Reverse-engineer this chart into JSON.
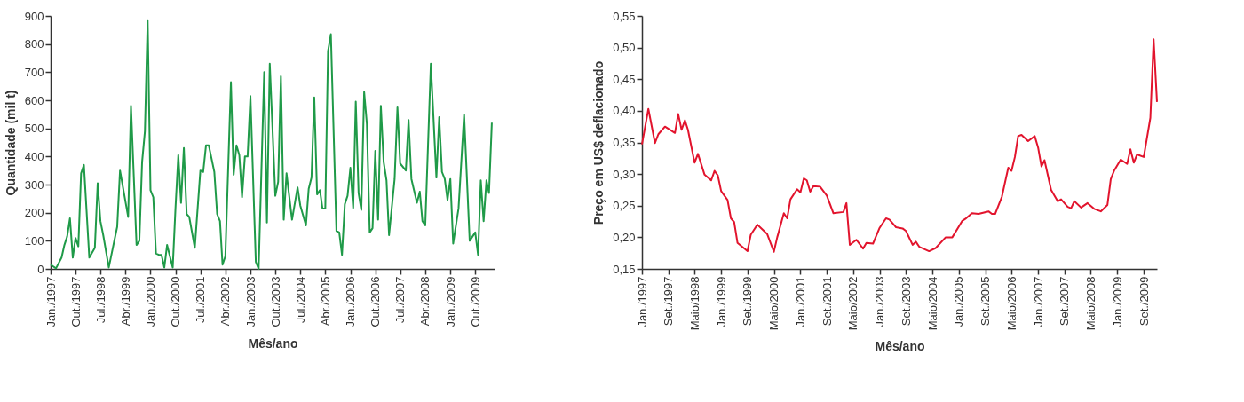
{
  "chart_data": [
    {
      "type": "line",
      "xlabel": "Mês/ano",
      "ylabel": "Quantidade (mil t)",
      "x": [
        "1997-01",
        "1997-03",
        "1997-05",
        "1997-06",
        "1997-07",
        "1997-08",
        "1997-09",
        "1997-10",
        "1997-11",
        "1997-12",
        "1998-01",
        "1998-03",
        "1998-05",
        "1998-06",
        "1998-07",
        "1998-08",
        "1998-10",
        "1999-01",
        "1999-02",
        "1999-05",
        "1999-06",
        "1999-08",
        "1999-09",
        "1999-10",
        "1999-11",
        "1999-12",
        "2000-01",
        "2000-02",
        "2000-03",
        "2000-04",
        "2000-05",
        "2000-06",
        "2000-07",
        "2000-09",
        "2000-10",
        "2000-11",
        "2000-12",
        "2001-01",
        "2001-02",
        "2001-03",
        "2001-05",
        "2001-07",
        "2001-08",
        "2001-09",
        "2001-10",
        "2001-12",
        "2002-01",
        "2002-02",
        "2002-03",
        "2002-04",
        "2002-06",
        "2002-07",
        "2002-08",
        "2002-09",
        "2002-10",
        "2002-11",
        "2002-12",
        "2003-01",
        "2003-03",
        "2003-04",
        "2003-06",
        "2003-07",
        "2003-08",
        "2003-10",
        "2003-11",
        "2003-12",
        "2004-01",
        "2004-02",
        "2004-04",
        "2004-06",
        "2004-07",
        "2004-09",
        "2004-10",
        "2004-11",
        "2004-12",
        "2005-01",
        "2005-02",
        "2005-03",
        "2005-04",
        "2005-05",
        "2005-06",
        "2005-08",
        "2005-09",
        "2005-10",
        "2005-11",
        "2005-12",
        "2006-01",
        "2006-02",
        "2006-03",
        "2006-04",
        "2006-05",
        "2006-06",
        "2006-07",
        "2006-08",
        "2006-09",
        "2006-10",
        "2006-11",
        "2006-12",
        "2007-01",
        "2007-02",
        "2007-03",
        "2007-05",
        "2007-06",
        "2007-07",
        "2007-09",
        "2007-10",
        "2007-11",
        "2008-01",
        "2008-02",
        "2008-03",
        "2008-04",
        "2008-06",
        "2008-08",
        "2008-09",
        "2008-10",
        "2008-11",
        "2008-12",
        "2009-01",
        "2009-02",
        "2009-04",
        "2009-06",
        "2009-08",
        "2009-10",
        "2009-11",
        "2009-12",
        "2010-01",
        "2010-02",
        "2010-03",
        "2010-04"
      ],
      "series": [
        {
          "color": "#1f9a48",
          "values": [
            15,
            2,
            40,
            85,
            115,
            180,
            40,
            110,
            80,
            340,
            370,
            40,
            75,
            305,
            170,
            120,
            5,
            150,
            350,
            185,
            580,
            85,
            100,
            380,
            490,
            885,
            280,
            255,
            55,
            50,
            50,
            5,
            85,
            5,
            215,
            405,
            235,
            430,
            195,
            185,
            75,
            350,
            345,
            440,
            440,
            345,
            195,
            170,
            15,
            45,
            665,
            335,
            440,
            405,
            255,
            400,
            400,
            615,
            25,
            0,
            700,
            165,
            730,
            260,
            310,
            685,
            175,
            340,
            175,
            290,
            225,
            155,
            285,
            325,
            610,
            265,
            280,
            215,
            215,
            775,
            835,
            135,
            130,
            50,
            230,
            260,
            360,
            215,
            595,
            270,
            210,
            630,
            515,
            130,
            145,
            420,
            175,
            580,
            380,
            315,
            120,
            320,
            575,
            375,
            350,
            530,
            320,
            235,
            275,
            170,
            155,
            730,
            325,
            540,
            345,
            320,
            245,
            320,
            90,
            215,
            550,
            100,
            130,
            50,
            315,
            170,
            315,
            270,
            520
          ]
        }
      ],
      "xlim": [
        "1997-01",
        "2010-05"
      ],
      "ylim": [
        0,
        900
      ],
      "yticks": [
        0,
        100,
        200,
        300,
        400,
        500,
        600,
        700,
        800,
        900
      ],
      "xticks": [
        {
          "value": "1997-01",
          "label": "Jan./1997"
        },
        {
          "value": "1997-10",
          "label": "Out./1997"
        },
        {
          "value": "1998-07",
          "label": "Jul./1998"
        },
        {
          "value": "1999-04",
          "label": "Abr./1999"
        },
        {
          "value": "2000-01",
          "label": "Jan./2000"
        },
        {
          "value": "2000-10",
          "label": "Out./2000"
        },
        {
          "value": "2001-07",
          "label": "Jul./2001"
        },
        {
          "value": "2002-04",
          "label": "Abr./2002"
        },
        {
          "value": "2003-01",
          "label": "Jan./2003"
        },
        {
          "value": "2003-10",
          "label": "Out./2003"
        },
        {
          "value": "2004-07",
          "label": "Jul./2004"
        },
        {
          "value": "2005-04",
          "label": "Abr./2005"
        },
        {
          "value": "2006-01",
          "label": "Jan./2006"
        },
        {
          "value": "2006-10",
          "label": "Out./2006"
        },
        {
          "value": "2007-07",
          "label": "Jul./2007"
        },
        {
          "value": "2008-04",
          "label": "Abr./2008"
        },
        {
          "value": "2009-01",
          "label": "Jan./2009"
        },
        {
          "value": "2009-10",
          "label": "Out./2009"
        }
      ],
      "grid": false
    },
    {
      "type": "line",
      "xlabel": "Mês/ano",
      "ylabel": "Preço em US$ deflacionado",
      "x": [
        "1997-01",
        "1997-03",
        "1997-05",
        "1997-06",
        "1997-08",
        "1997-11",
        "1997-12",
        "1998-01",
        "1998-02",
        "1998-03",
        "1998-05",
        "1998-06",
        "1998-08",
        "1998-10",
        "1998-11",
        "1998-12",
        "1999-01",
        "1999-03",
        "1999-04",
        "1999-05",
        "1999-06",
        "1999-09",
        "1999-10",
        "1999-12",
        "2000-03",
        "2000-05",
        "2000-06",
        "2000-08",
        "2000-09",
        "2000-10",
        "2000-12",
        "2001-01",
        "2001-02",
        "2001-03",
        "2001-04",
        "2001-05",
        "2001-07",
        "2001-09",
        "2001-11",
        "2002-02",
        "2002-03",
        "2002-04",
        "2002-06",
        "2002-08",
        "2002-09",
        "2002-11",
        "2003-01",
        "2003-03",
        "2003-04",
        "2003-06",
        "2003-08",
        "2003-09",
        "2003-11",
        "2003-12",
        "2004-01",
        "2004-04",
        "2004-06",
        "2004-09",
        "2004-11",
        "2005-02",
        "2005-03",
        "2005-05",
        "2005-07",
        "2005-10",
        "2005-11",
        "2005-12",
        "2006-02",
        "2006-04",
        "2006-05",
        "2006-06",
        "2006-07",
        "2006-08",
        "2006-10",
        "2006-12",
        "2007-01",
        "2007-02",
        "2007-03",
        "2007-05",
        "2007-07",
        "2007-08",
        "2007-10",
        "2007-11",
        "2007-12",
        "2008-02",
        "2008-04",
        "2008-06",
        "2008-08",
        "2008-10",
        "2008-11",
        "2008-12",
        "2009-02",
        "2009-04",
        "2009-05",
        "2009-06",
        "2009-07",
        "2009-09",
        "2009-11",
        "2009-12",
        "2010-01"
      ],
      "series": [
        {
          "color": "#e2142d",
          "values": [
            0.347,
            0.403,
            0.349,
            0.363,
            0.375,
            0.365,
            0.395,
            0.37,
            0.385,
            0.37,
            0.318,
            0.332,
            0.299,
            0.29,
            0.305,
            0.298,
            0.273,
            0.259,
            0.23,
            0.224,
            0.191,
            0.178,
            0.204,
            0.22,
            0.205,
            0.177,
            0.2,
            0.238,
            0.23,
            0.26,
            0.276,
            0.271,
            0.293,
            0.29,
            0.272,
            0.281,
            0.28,
            0.266,
            0.238,
            0.24,
            0.254,
            0.188,
            0.196,
            0.182,
            0.191,
            0.19,
            0.215,
            0.23,
            0.228,
            0.216,
            0.214,
            0.21,
            0.188,
            0.193,
            0.185,
            0.178,
            0.183,
            0.2,
            0.2,
            0.226,
            0.229,
            0.238,
            0.237,
            0.241,
            0.237,
            0.237,
            0.264,
            0.31,
            0.305,
            0.327,
            0.36,
            0.362,
            0.352,
            0.36,
            0.342,
            0.312,
            0.322,
            0.275,
            0.257,
            0.26,
            0.248,
            0.246,
            0.257,
            0.247,
            0.254,
            0.245,
            0.241,
            0.251,
            0.292,
            0.305,
            0.323,
            0.316,
            0.339,
            0.318,
            0.331,
            0.327,
            0.389,
            0.513,
            0.414
          ]
        }
      ],
      "xlim": [
        "1997-01",
        "2010-01"
      ],
      "ylim": [
        0.15,
        0.55
      ],
      "yticks": [
        {
          "value": 0.15,
          "label": "0,15"
        },
        {
          "value": 0.2,
          "label": "0,20"
        },
        {
          "value": 0.25,
          "label": "0,25"
        },
        {
          "value": 0.3,
          "label": "0,30"
        },
        {
          "value": 0.35,
          "label": "0,35"
        },
        {
          "value": 0.4,
          "label": "0,40"
        },
        {
          "value": 0.45,
          "label": "0,45"
        },
        {
          "value": 0.5,
          "label": "0,50"
        },
        {
          "value": 0.55,
          "label": "0,55"
        }
      ],
      "xticks": [
        {
          "value": "1997-01",
          "label": "Jan./1997"
        },
        {
          "value": "1997-09",
          "label": "Set./1997"
        },
        {
          "value": "1998-05",
          "label": "Maio/1998"
        },
        {
          "value": "1999-01",
          "label": "Jan./1999"
        },
        {
          "value": "1999-09",
          "label": "Set./1999"
        },
        {
          "value": "2000-05",
          "label": "Maio/2000"
        },
        {
          "value": "2001-01",
          "label": "Jan./2001"
        },
        {
          "value": "2001-09",
          "label": "Set./2001"
        },
        {
          "value": "2002-05",
          "label": "Maio/2002"
        },
        {
          "value": "2003-01",
          "label": "Jan./2003"
        },
        {
          "value": "2003-09",
          "label": "Set./2003"
        },
        {
          "value": "2004-05",
          "label": "Maio/2004"
        },
        {
          "value": "2005-01",
          "label": "Jan./2005"
        },
        {
          "value": "2005-09",
          "label": "Set./2005"
        },
        {
          "value": "2006-05",
          "label": "Maio/2006"
        },
        {
          "value": "2007-01",
          "label": "Jan./2007"
        },
        {
          "value": "2007-09",
          "label": "Set./2007"
        },
        {
          "value": "2008-05",
          "label": "Maio/2008"
        },
        {
          "value": "2009-01",
          "label": "Jan./2009"
        },
        {
          "value": "2009-09",
          "label": "Set./2009"
        }
      ],
      "grid": false
    }
  ]
}
